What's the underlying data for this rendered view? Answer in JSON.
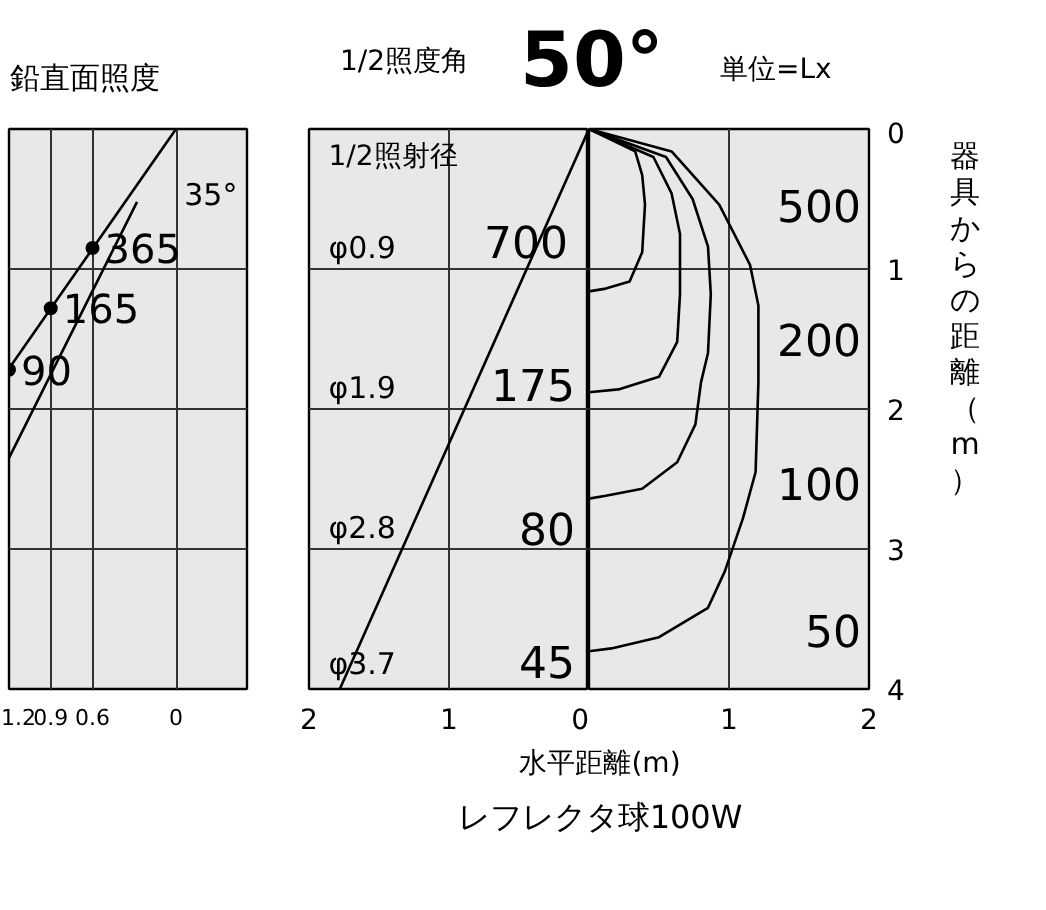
{
  "chart_data": [
    {
      "type": "line",
      "title": "鉛直面照度",
      "xlim": [
        1.2,
        -0.51
      ],
      "ylim": [
        4,
        0
      ],
      "xticks": [
        1.2,
        0.9,
        0.6,
        0
      ],
      "yticks": [
        0,
        1,
        2,
        3,
        4
      ],
      "tick_labels": "x",
      "grid": true,
      "series": [
        {
          "color": "#000000",
          "x": [
            0,
            1.2
          ],
          "values": [
            0,
            1.71
          ]
        },
        {
          "color": "#000000",
          "x": [
            0.28,
            1.2
          ],
          "values": [
            0.52,
            2.35
          ]
        },
        {
          "type": "scatter",
          "color": "#000000",
          "marker": "circle",
          "x": [
            0.6,
            0.9,
            1.2
          ],
          "values": [
            0.85,
            1.28,
            1.72
          ]
        }
      ],
      "annotations": [
        "35°",
        {
          "text": "365",
          "x": 0.6,
          "y": 0.85
        },
        {
          "text": "165",
          "x": 0.9,
          "y": 1.28
        },
        {
          "text": "90",
          "x": 1.2,
          "y": 1.72
        }
      ]
    },
    {
      "type": "line",
      "title": "1/2照度角",
      "subtitle": "50°",
      "xlabel": "水平距離(m)",
      "xlim": [
        2,
        0
      ],
      "ylim": [
        4,
        0
      ],
      "xticks": [
        2,
        1,
        0
      ],
      "yticks": [
        0,
        1,
        2,
        3,
        4
      ],
      "tick_labels": "x",
      "grid": true,
      "series": [
        {
          "color": "#000000",
          "x": [
            0,
            1.78
          ],
          "values": [
            0,
            4
          ]
        }
      ],
      "annotations": [
        "1/2照射径",
        "φ0.9",
        "φ1.9",
        "φ2.8",
        "φ3.7",
        "700",
        "175",
        "80",
        "45"
      ]
    },
    {
      "type": "line",
      "ylabel": "器具からの距離（m）",
      "xlim": [
        0,
        2
      ],
      "ylim": [
        4,
        0
      ],
      "xticks": [
        {
          "value": 0,
          "label": null
        },
        1,
        2
      ],
      "yticks": [
        0,
        1,
        2,
        3,
        4
      ],
      "grid": true,
      "series": [
        {
          "name": "500",
          "color": "#000000",
          "x": [
            0,
            0.33,
            0.38,
            0.4,
            0.38,
            0.29,
            0.12,
            0
          ],
          "values": [
            0,
            0.16,
            0.33,
            0.54,
            0.88,
            1.09,
            1.14,
            1.16
          ]
        },
        {
          "name": "200",
          "color": "#000000",
          "x": [
            0,
            0.46,
            0.59,
            0.65,
            0.65,
            0.63,
            0.5,
            0.21,
            0
          ],
          "values": [
            0,
            0.2,
            0.46,
            0.75,
            1.18,
            1.52,
            1.77,
            1.86,
            1.88
          ]
        },
        {
          "name": "100",
          "color": "#000000",
          "x": [
            0,
            0.55,
            0.74,
            0.85,
            0.87,
            0.85,
            0.8,
            0.76,
            0.63,
            0.38,
            0.12,
            0
          ],
          "values": [
            0,
            0.2,
            0.5,
            0.84,
            1.18,
            1.6,
            1.81,
            2.11,
            2.38,
            2.57,
            2.62,
            2.64
          ]
        },
        {
          "name": "50",
          "color": "#000000",
          "x": [
            0,
            0.59,
            0.93,
            1.15,
            1.21,
            1.21,
            1.19,
            1.1,
            0.97,
            0.85,
            0.5,
            0.16,
            0
          ],
          "values": [
            0,
            0.16,
            0.54,
            0.97,
            1.26,
            1.81,
            2.45,
            2.78,
            3.16,
            3.42,
            3.63,
            3.71,
            3.73
          ]
        }
      ],
      "annotations": [
        "単位=Lx",
        "レフレクタ球100W"
      ]
    }
  ]
}
